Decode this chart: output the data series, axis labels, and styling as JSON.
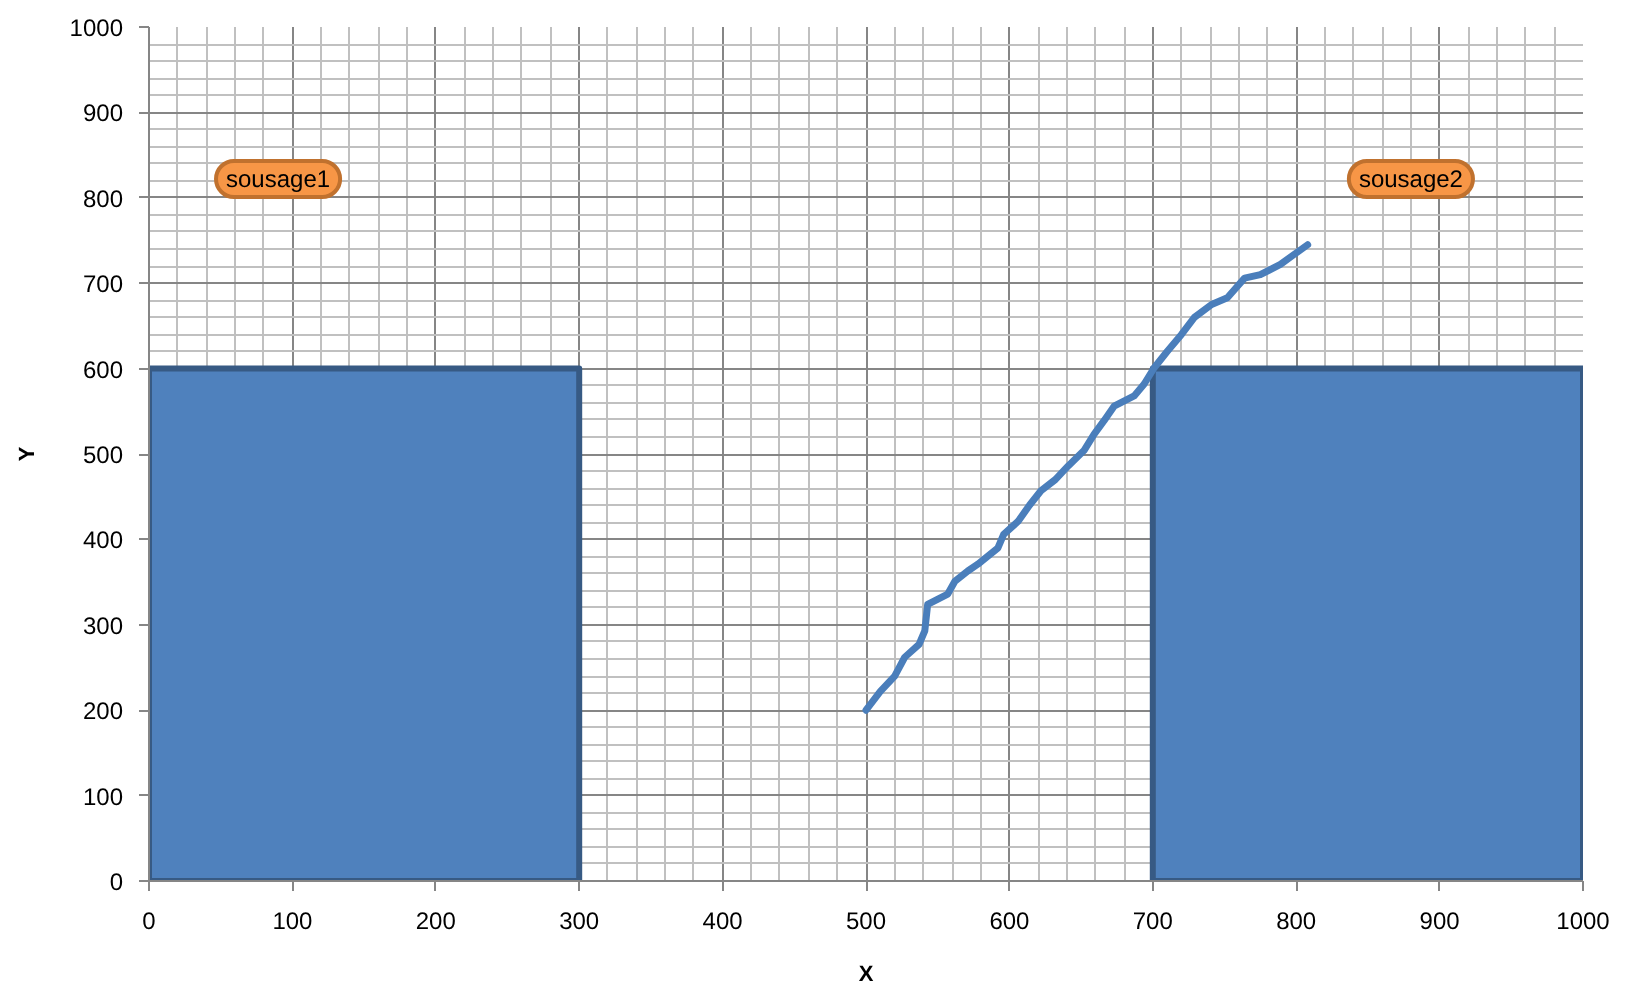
{
  "chart_data": {
    "type": "line",
    "xlabel": "X",
    "ylabel": "Y",
    "xlim": [
      0,
      1000
    ],
    "ylim": [
      0,
      1000
    ],
    "xticks": [
      0,
      100,
      200,
      300,
      400,
      500,
      600,
      700,
      800,
      900,
      1000
    ],
    "yticks": [
      0,
      100,
      200,
      300,
      400,
      500,
      600,
      700,
      800,
      900,
      1000
    ],
    "grid": true,
    "series": [
      {
        "type": "area",
        "color": "#4f81bd",
        "x": [
          0,
          300
        ],
        "values": [
          600,
          600
        ]
      },
      {
        "type": "area",
        "color": "#4f81bd",
        "x": [
          700,
          1000
        ],
        "values": [
          600,
          600
        ]
      },
      {
        "color": "#4a7ebb",
        "x": [
          500,
          510,
          520,
          527,
          537,
          541,
          543,
          557,
          562,
          571,
          578,
          592,
          596,
          606,
          614,
          622,
          632,
          641,
          652,
          659,
          666,
          673,
          687,
          694,
          701,
          710,
          720,
          729,
          741,
          752,
          764,
          775,
          789,
          798,
          808
        ],
        "values": [
          200,
          222,
          240,
          262,
          277,
          293,
          324,
          336,
          351,
          363,
          371,
          390,
          406,
          421,
          440,
          457,
          470,
          486,
          504,
          523,
          539,
          556,
          568,
          582,
          601,
          620,
          640,
          660,
          675,
          683,
          706,
          710,
          722,
          733,
          745
        ]
      }
    ],
    "annotations": [
      "sousage1",
      "sousage2"
    ]
  }
}
